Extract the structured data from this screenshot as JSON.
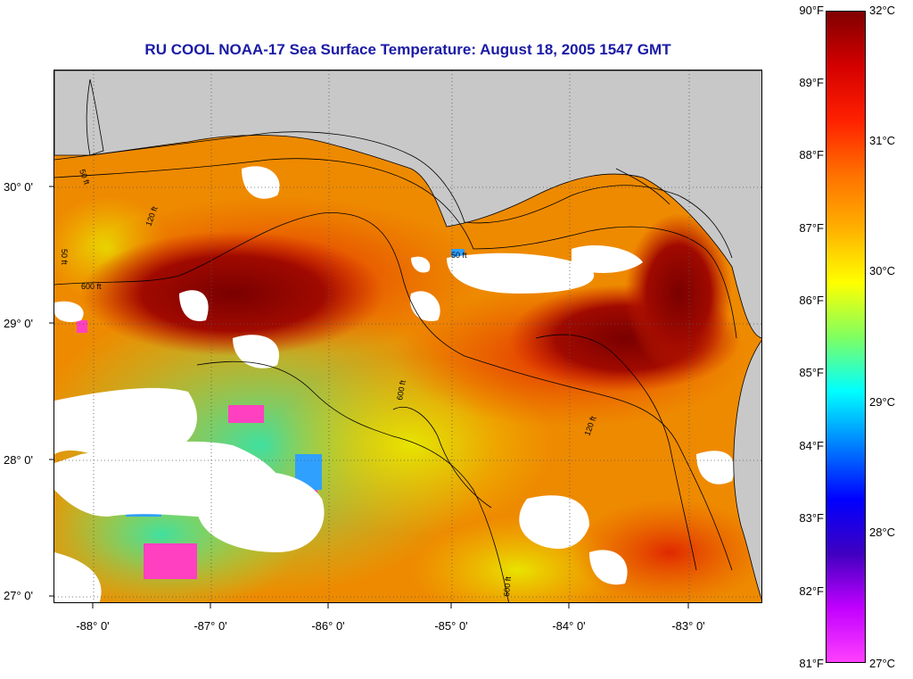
{
  "title": "RU COOL  NOAA-17  Sea Surface Temperature:  August 18, 2005 1547 GMT",
  "map": {
    "lat_labels": [
      "30° 0'",
      "29° 0'",
      "28° 0'",
      "27° 0'"
    ],
    "lon_labels": [
      "-88° 0'",
      "-87° 0'",
      "-86° 0'",
      "-85° 0'",
      "-84° 0'",
      "-83° 0'"
    ],
    "contour_labels": [
      "50 ft",
      "50 ft",
      "120 ft",
      "600 ft",
      "600 ft",
      "600 ft",
      "120 ft",
      "50 ft"
    ],
    "colors": {
      "land": "#c8c8c8",
      "cloud": "#ffffff",
      "sea_hot": "#8c0000",
      "sea_warm": "#e63c00",
      "sea_mild": "#f08c00",
      "sea_yellow": "#e8e000",
      "sea_cool": "#60e860",
      "sea_cold": "#30c0ff",
      "sea_magenta": "#ff40c0"
    }
  },
  "colorbar": {
    "fahrenheit_labels": [
      "90°F",
      "89°F",
      "88°F",
      "87°F",
      "86°F",
      "85°F",
      "84°F",
      "83°F",
      "82°F",
      "81°F"
    ],
    "celsius_labels": [
      "32°C",
      "31°C",
      "30°C",
      "29°C",
      "28°C",
      "27°C"
    ],
    "gradient_colors": [
      "#800000",
      "#d40000",
      "#ff2000",
      "#ff7000",
      "#ffb000",
      "#ffff00",
      "#80ff60",
      "#00ffff",
      "#0080ff",
      "#0000ff",
      "#4000c0",
      "#c000ff",
      "#ff40ff"
    ]
  }
}
